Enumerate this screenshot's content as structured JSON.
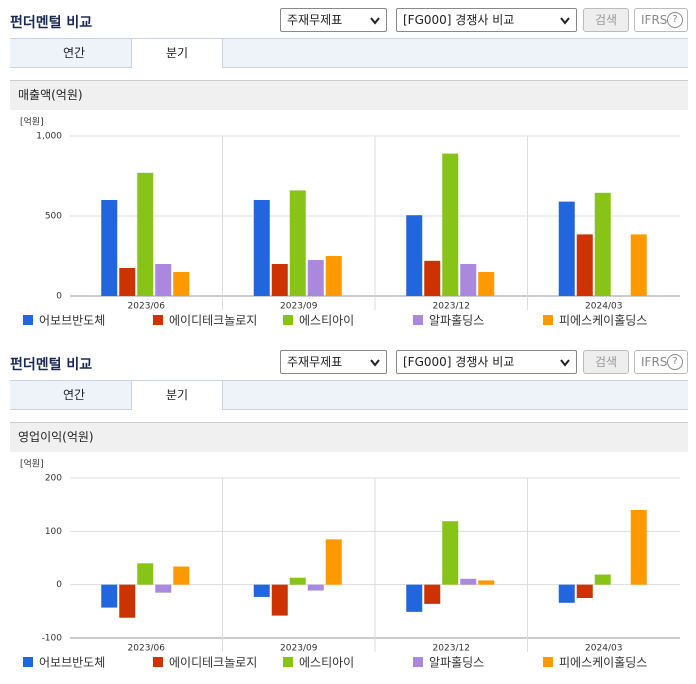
{
  "panels": [
    {
      "title": "펀더멘털 비교",
      "select1": "주재무제표",
      "select2": "[FG000] 경쟁사 비교",
      "button": "검색",
      "ifrs": "IFRS",
      "help": "?",
      "tabs": [
        "연간",
        "분기"
      ]
    },
    {
      "title": "펀더멘털 비교",
      "select1": "주재무제표",
      "select2": "[FG000] 경쟁사 비교",
      "button": "검색",
      "ifrs": "IFRS",
      "help": "?",
      "tabs": [
        "연간",
        "분기"
      ]
    }
  ],
  "chart_data": [
    {
      "type": "bar",
      "title": "매출액(억원)",
      "y_label": "[억원]",
      "categories": [
        "2023/06",
        "2023/09",
        "2023/12",
        "2024/03"
      ],
      "ylim": [
        0,
        1000
      ],
      "yticks": [
        0,
        500,
        {
          "value": 1000,
          "label": "1,000"
        }
      ],
      "grid": true,
      "series": [
        {
          "name": "어보브반도체",
          "color": "#2266dd",
          "values": [
            600,
            600,
            505,
            590
          ]
        },
        {
          "name": "에이디테크놀로지",
          "color": "#cc3300",
          "values": [
            175,
            200,
            220,
            385
          ]
        },
        {
          "name": "에스티아이",
          "color": "#88c418",
          "values": [
            770,
            660,
            890,
            645
          ]
        },
        {
          "name": "알파홀딩스",
          "color": "#aa88dd",
          "values": [
            200,
            225,
            200,
            null
          ]
        },
        {
          "name": "피에스케이홀딩스",
          "color": "#ff9900",
          "values": [
            150,
            250,
            150,
            385
          ]
        }
      ]
    },
    {
      "type": "bar",
      "title": "영업이익(억원)",
      "y_label": "[억원]",
      "categories": [
        "2023/06",
        "2023/09",
        "2023/12",
        "2024/03"
      ],
      "ylim": [
        -100,
        200
      ],
      "yticks": [
        -100,
        0,
        100,
        200
      ],
      "grid": true,
      "series": [
        {
          "name": "어보브반도체",
          "color": "#2266dd",
          "values": [
            -43,
            -23,
            -51,
            -34
          ]
        },
        {
          "name": "에이디테크놀로지",
          "color": "#cc3300",
          "values": [
            -62,
            -58,
            -36,
            -25
          ]
        },
        {
          "name": "에스티아이",
          "color": "#88c418",
          "values": [
            40,
            13,
            119,
            19
          ]
        },
        {
          "name": "알파홀딩스",
          "color": "#aa88dd",
          "values": [
            -15,
            -11,
            11,
            null
          ]
        },
        {
          "name": "피에스케이홀딩스",
          "color": "#ff9900",
          "values": [
            34,
            85,
            8,
            140
          ]
        }
      ]
    }
  ]
}
